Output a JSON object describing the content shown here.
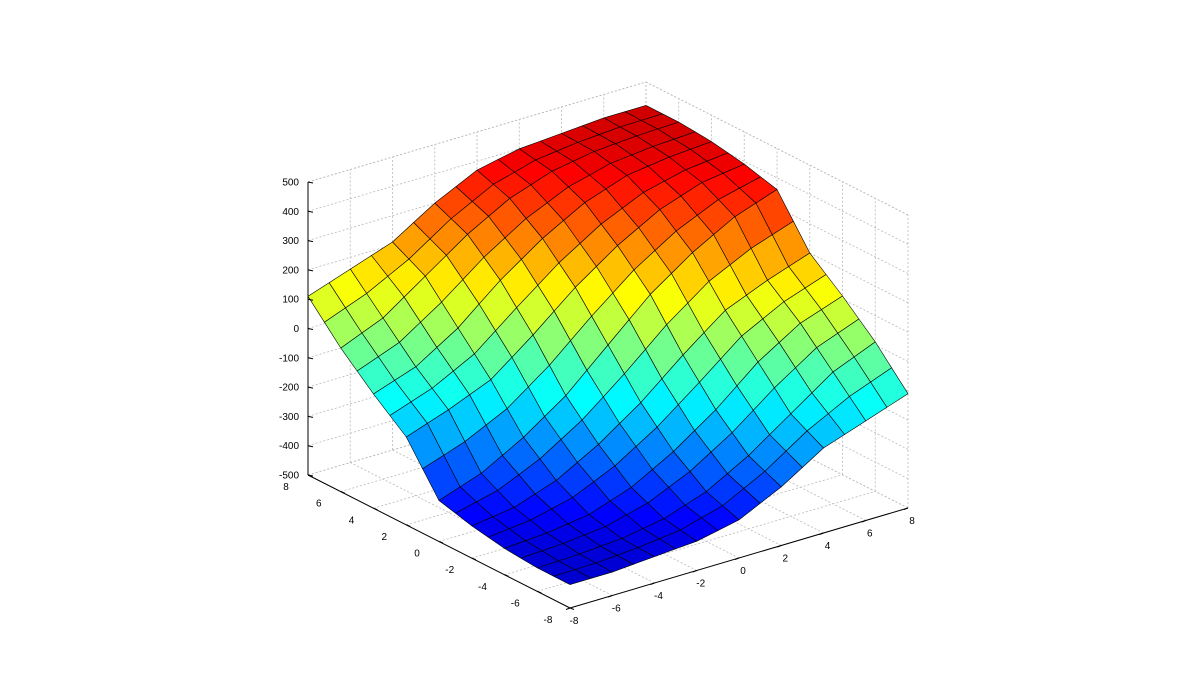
{
  "chart_data": {
    "type": "surface",
    "title": "",
    "xlabel": "",
    "ylabel": "",
    "zlabel": "",
    "colormap": "jet",
    "grid": true,
    "edge_color": "#000000",
    "x_ticks": [
      -8,
      -6,
      -4,
      -2,
      0,
      2,
      4,
      6,
      8
    ],
    "y_ticks": [
      -8,
      -6,
      -4,
      -2,
      0,
      2,
      4,
      6,
      8
    ],
    "z_ticks": [
      -500,
      -400,
      -300,
      -200,
      -100,
      0,
      100,
      200,
      300,
      400,
      500
    ],
    "x_tick_labels": [
      "-8",
      "-6",
      "-4",
      "-2",
      "0",
      "2",
      "4",
      "6",
      "8"
    ],
    "y_tick_labels": [
      "-8",
      "-6",
      "-4",
      "-2",
      "0",
      "2",
      "4",
      "6",
      "8"
    ],
    "z_tick_labels": [
      "-500",
      "-400",
      "-300",
      "-200",
      "-100",
      "0",
      "100",
      "200",
      "300",
      "400",
      "500"
    ],
    "xlim": [
      -8,
      8
    ],
    "ylim": [
      -8,
      8
    ],
    "zlim": [
      -500,
      500
    ],
    "x": [
      -8,
      -6,
      -4,
      -2,
      0,
      2,
      4,
      6,
      8
    ],
    "y": [
      -8,
      -6,
      -4,
      -2,
      0,
      2,
      4,
      6,
      8
    ],
    "z": [
      [
        -420,
        -420,
        -410,
        -400,
        -370,
        -300,
        -210,
        -160,
        -110
      ],
      [
        -420,
        -415,
        -405,
        -380,
        -330,
        -250,
        -150,
        -50,
        10
      ],
      [
        -410,
        -400,
        -380,
        -330,
        -250,
        -150,
        -30,
        60,
        110
      ],
      [
        -390,
        -370,
        -320,
        -240,
        -140,
        -20,
        90,
        150,
        200
      ],
      [
        -360,
        -310,
        -230,
        -130,
        0,
        130,
        230,
        310,
        360
      ],
      [
        -200,
        -150,
        -90,
        20,
        140,
        240,
        320,
        370,
        390
      ],
      [
        -110,
        -60,
        30,
        150,
        250,
        330,
        380,
        400,
        410
      ],
      [
        -10,
        50,
        150,
        250,
        330,
        380,
        405,
        415,
        420
      ],
      [
        110,
        160,
        210,
        300,
        370,
        400,
        410,
        420,
        420
      ]
    ]
  }
}
